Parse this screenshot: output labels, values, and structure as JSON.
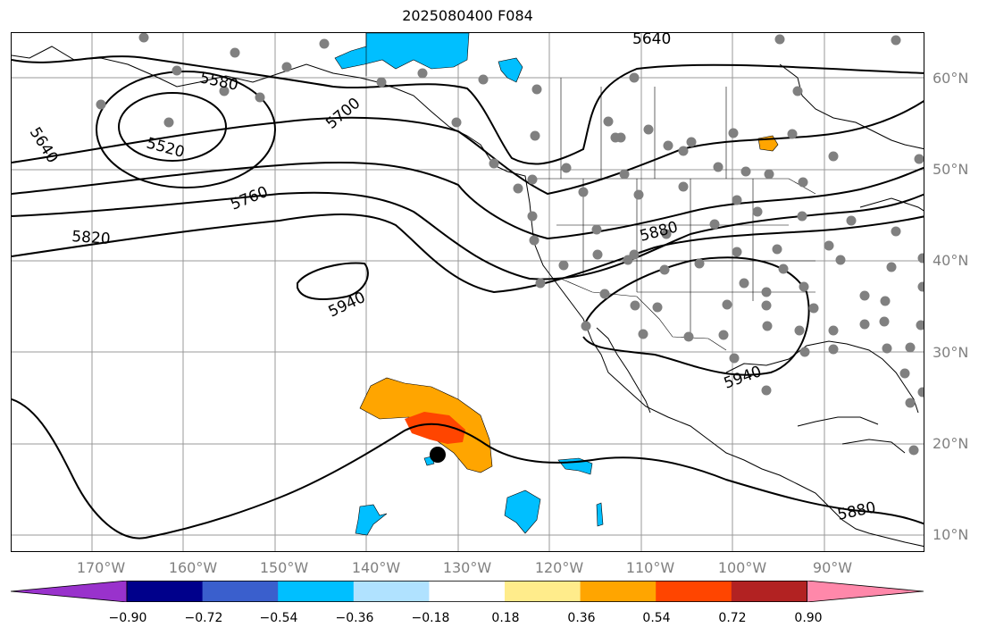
{
  "title": "2025080400 F084",
  "lat_labels": [
    "60°N",
    "50°N",
    "40°N",
    "30°N",
    "20°N",
    "10°N"
  ],
  "lon_labels": [
    "170°W",
    "160°W",
    "150°W",
    "140°W",
    "130°W",
    "120°W",
    "110°W",
    "100°W",
    "90°W"
  ],
  "contour_labels": [
    "5640",
    "5580",
    "5520",
    "5700",
    "5640",
    "5760",
    "5820",
    "5880",
    "5940",
    "5940",
    "5880"
  ],
  "colorbar": {
    "ticks": [
      "−0.90",
      "−0.72",
      "−0.54",
      "−0.36",
      "−0.18",
      "0.18",
      "0.36",
      "0.54",
      "0.72",
      "0.90"
    ],
    "colors": [
      "#9932CC",
      "#00008B",
      "#3A5FCD",
      "#00BFFF",
      "#B0E2FF",
      "#FFFFFF",
      "#FFEC8B",
      "#FFA500",
      "#FF4500",
      "#B22222",
      "#FF88AA"
    ]
  },
  "colors": {
    "contour": "#000000",
    "station_dot": "#808080",
    "grid": "#999999",
    "label": "#808080"
  }
}
